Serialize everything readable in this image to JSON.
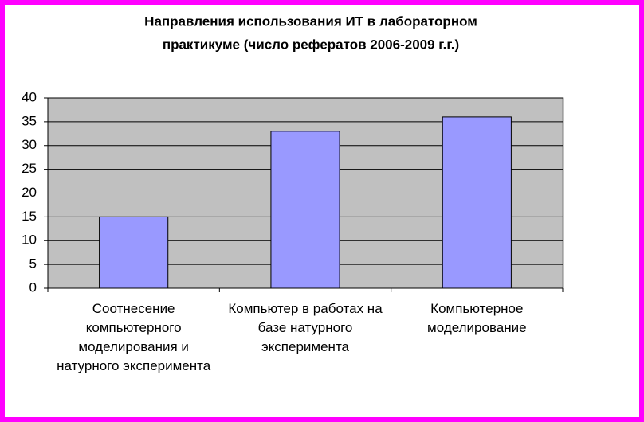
{
  "chart_data": {
    "type": "bar",
    "title": [
      "Направления использования ИТ в лабораторном",
      "практикуме (число рефератов 2006-2009 г.г.)"
    ],
    "categories": [
      "Соотнесение компьютерного моделирования и натурного эксперимента",
      "Компьютер в работах на базе натурного эксперимента",
      "Компьютерное моделирование"
    ],
    "values": [
      15,
      33,
      36
    ],
    "color": "#9999ff",
    "ylim": [
      0,
      40
    ],
    "yticks": [
      0,
      5,
      10,
      15,
      20,
      25,
      30,
      35,
      40
    ],
    "grid": true
  }
}
